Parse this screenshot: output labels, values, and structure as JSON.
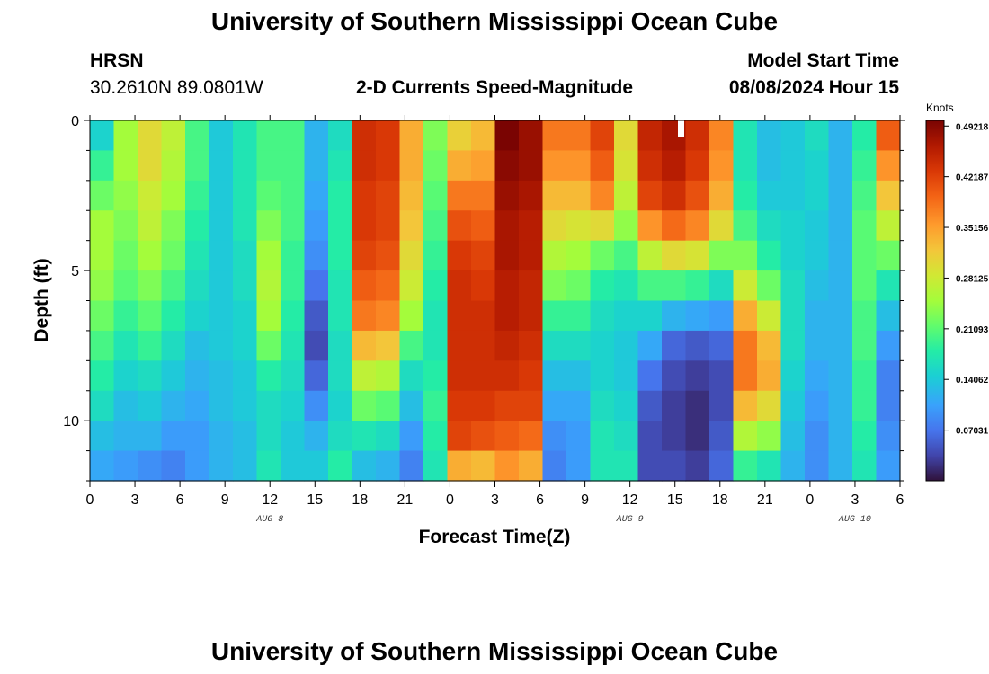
{
  "header": {
    "title": "University of Southern Mississippi Ocean Cube",
    "station": "HRSN",
    "coords": "30.2610N  89.0801W",
    "subtitle": "2-D Currents Speed-Magnitude",
    "model_label": "Model Start Time",
    "model_time": "08/08/2024 Hour 15"
  },
  "footer": {
    "title": "University of Southern Mississippi Ocean Cube"
  },
  "chart_data": {
    "type": "heatmap",
    "title": "2-D Currents Speed-Magnitude",
    "xlabel": "Forecast Time(Z)",
    "ylabel": "Depth (ft)",
    "x_hours_from_start": [
      0,
      54
    ],
    "x_tick_labels": [
      "0",
      "3",
      "6",
      "9",
      "12",
      "15",
      "18",
      "21",
      "0",
      "3",
      "6",
      "9",
      "12",
      "15",
      "18",
      "21",
      "0",
      "3",
      "6"
    ],
    "date_labels": [
      {
        "label": "AUG 8",
        "at_tick": "12"
      },
      {
        "label": "AUG 9",
        "at_tick": "12"
      },
      {
        "label": "AUG 10",
        "at_tick": "3"
      }
    ],
    "y_range_ft": [
      0,
      12
    ],
    "y_tick_labels": [
      "0",
      "5",
      "10"
    ],
    "colorbar": {
      "unit": "Knots",
      "range": [
        0,
        0.5
      ],
      "labels": [
        "0.49218",
        "0.42187",
        "0.35156",
        "0.28125",
        "0.21093",
        "0.14062",
        "0.07031"
      ]
    },
    "profiles_knots": [
      [
        0.15,
        0.19,
        0.22,
        0.25,
        0.25,
        0.24,
        0.22,
        0.2,
        0.18,
        0.16,
        0.13,
        0.11
      ],
      [
        0.25,
        0.25,
        0.24,
        0.23,
        0.22,
        0.21,
        0.19,
        0.17,
        0.15,
        0.13,
        0.12,
        0.1
      ],
      [
        0.3,
        0.3,
        0.28,
        0.27,
        0.25,
        0.23,
        0.21,
        0.19,
        0.16,
        0.14,
        0.12,
        0.09
      ],
      [
        0.27,
        0.26,
        0.25,
        0.23,
        0.22,
        0.2,
        0.18,
        0.16,
        0.14,
        0.12,
        0.1,
        0.08
      ],
      [
        0.2,
        0.2,
        0.19,
        0.18,
        0.17,
        0.16,
        0.15,
        0.13,
        0.12,
        0.11,
        0.1,
        0.1
      ],
      [
        0.14,
        0.14,
        0.14,
        0.14,
        0.14,
        0.14,
        0.14,
        0.14,
        0.13,
        0.13,
        0.12,
        0.12
      ],
      [
        0.17,
        0.17,
        0.17,
        0.17,
        0.16,
        0.16,
        0.15,
        0.15,
        0.14,
        0.14,
        0.13,
        0.13
      ],
      [
        0.2,
        0.2,
        0.21,
        0.23,
        0.25,
        0.26,
        0.25,
        0.22,
        0.18,
        0.16,
        0.16,
        0.17
      ],
      [
        0.2,
        0.2,
        0.2,
        0.2,
        0.19,
        0.19,
        0.18,
        0.17,
        0.16,
        0.15,
        0.14,
        0.14
      ],
      [
        0.12,
        0.12,
        0.11,
        0.1,
        0.09,
        0.07,
        0.05,
        0.04,
        0.06,
        0.09,
        0.12,
        0.14
      ],
      [
        0.16,
        0.17,
        0.18,
        0.18,
        0.18,
        0.17,
        0.17,
        0.16,
        0.16,
        0.15,
        0.16,
        0.18
      ],
      [
        0.44,
        0.44,
        0.43,
        0.43,
        0.42,
        0.4,
        0.38,
        0.33,
        0.27,
        0.22,
        0.17,
        0.13
      ],
      [
        0.43,
        0.43,
        0.42,
        0.42,
        0.41,
        0.39,
        0.37,
        0.32,
        0.26,
        0.21,
        0.16,
        0.12
      ],
      [
        0.34,
        0.34,
        0.33,
        0.32,
        0.3,
        0.28,
        0.25,
        0.2,
        0.16,
        0.13,
        0.1,
        0.08
      ],
      [
        0.23,
        0.22,
        0.21,
        0.2,
        0.19,
        0.18,
        0.17,
        0.17,
        0.18,
        0.19,
        0.18,
        0.17
      ],
      [
        0.31,
        0.34,
        0.38,
        0.41,
        0.43,
        0.44,
        0.44,
        0.44,
        0.44,
        0.43,
        0.42,
        0.34
      ],
      [
        0.33,
        0.35,
        0.38,
        0.4,
        0.42,
        0.43,
        0.44,
        0.44,
        0.44,
        0.43,
        0.41,
        0.33
      ],
      [
        0.5,
        0.49,
        0.48,
        0.47,
        0.47,
        0.46,
        0.46,
        0.45,
        0.44,
        0.42,
        0.4,
        0.36
      ],
      [
        0.48,
        0.48,
        0.47,
        0.46,
        0.46,
        0.45,
        0.45,
        0.44,
        0.43,
        0.42,
        0.39,
        0.34
      ],
      [
        0.38,
        0.36,
        0.33,
        0.3,
        0.26,
        0.23,
        0.19,
        0.16,
        0.13,
        0.11,
        0.09,
        0.08
      ],
      [
        0.38,
        0.36,
        0.33,
        0.29,
        0.25,
        0.22,
        0.19,
        0.16,
        0.13,
        0.11,
        0.1,
        0.1
      ],
      [
        0.42,
        0.4,
        0.37,
        0.3,
        0.22,
        0.18,
        0.16,
        0.15,
        0.15,
        0.16,
        0.17,
        0.17
      ],
      [
        0.3,
        0.29,
        0.27,
        0.24,
        0.2,
        0.17,
        0.15,
        0.14,
        0.14,
        0.15,
        0.16,
        0.17
      ],
      [
        0.45,
        0.44,
        0.42,
        0.36,
        0.27,
        0.2,
        0.15,
        0.11,
        0.07,
        0.05,
        0.04,
        0.04
      ],
      [
        0.47,
        0.46,
        0.44,
        0.39,
        0.3,
        0.2,
        0.12,
        0.06,
        0.04,
        0.03,
        0.03,
        0.04
      ],
      [
        0.44,
        0.43,
        0.41,
        0.37,
        0.29,
        0.19,
        0.11,
        0.05,
        0.03,
        0.02,
        0.02,
        0.03
      ],
      [
        0.37,
        0.36,
        0.34,
        0.3,
        0.23,
        0.16,
        0.1,
        0.06,
        0.04,
        0.04,
        0.05,
        0.06
      ],
      [
        0.17,
        0.17,
        0.18,
        0.2,
        0.23,
        0.28,
        0.34,
        0.38,
        0.38,
        0.33,
        0.26,
        0.19
      ],
      [
        0.13,
        0.13,
        0.14,
        0.16,
        0.18,
        0.22,
        0.28,
        0.33,
        0.34,
        0.3,
        0.24,
        0.17
      ],
      [
        0.14,
        0.14,
        0.14,
        0.15,
        0.15,
        0.16,
        0.16,
        0.16,
        0.15,
        0.14,
        0.13,
        0.12
      ],
      [
        0.16,
        0.15,
        0.15,
        0.14,
        0.14,
        0.13,
        0.12,
        0.12,
        0.11,
        0.1,
        0.09,
        0.09
      ],
      [
        0.12,
        0.12,
        0.12,
        0.12,
        0.12,
        0.12,
        0.12,
        0.12,
        0.12,
        0.12,
        0.12,
        0.12
      ],
      [
        0.18,
        0.19,
        0.2,
        0.21,
        0.21,
        0.21,
        0.2,
        0.2,
        0.19,
        0.19,
        0.18,
        0.17
      ],
      [
        0.4,
        0.36,
        0.32,
        0.27,
        0.22,
        0.17,
        0.13,
        0.1,
        0.08,
        0.08,
        0.09,
        0.1
      ]
    ]
  }
}
